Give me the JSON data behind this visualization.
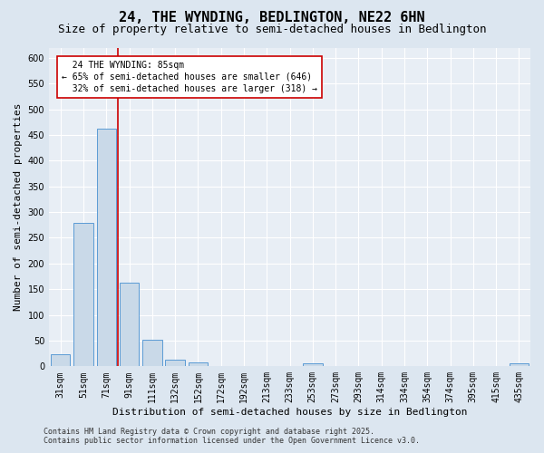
{
  "title_line1": "24, THE WYNDING, BEDLINGTON, NE22 6HN",
  "title_line2": "Size of property relative to semi-detached houses in Bedlington",
  "xlabel": "Distribution of semi-detached houses by size in Bedlington",
  "ylabel": "Number of semi-detached properties",
  "bar_labels": [
    "31sqm",
    "51sqm",
    "71sqm",
    "91sqm",
    "111sqm",
    "132sqm",
    "152sqm",
    "172sqm",
    "192sqm",
    "213sqm",
    "233sqm",
    "253sqm",
    "273sqm",
    "293sqm",
    "314sqm",
    "334sqm",
    "354sqm",
    "374sqm",
    "395sqm",
    "415sqm",
    "435sqm"
  ],
  "bar_values": [
    23,
    279,
    462,
    163,
    52,
    13,
    8,
    0,
    0,
    0,
    0,
    5,
    0,
    0,
    0,
    0,
    0,
    0,
    0,
    0,
    5
  ],
  "bar_color": "#c9d9e8",
  "bar_edge_color": "#5b9bd5",
  "ylim": [
    0,
    620
  ],
  "yticks": [
    0,
    50,
    100,
    150,
    200,
    250,
    300,
    350,
    400,
    450,
    500,
    550,
    600
  ],
  "red_line_x": 2.5,
  "annotation_text_line1": "  24 THE WYNDING: 85sqm",
  "annotation_text_line2": "← 65% of semi-detached houses are smaller (646)",
  "annotation_text_line3": "  32% of semi-detached houses are larger (318) →",
  "annotation_box_color": "#ffffff",
  "annotation_box_edge_color": "#cc0000",
  "red_line_color": "#cc0000",
  "background_color": "#dce6f0",
  "plot_background_color": "#e8eef5",
  "grid_color": "#ffffff",
  "footer_line1": "Contains HM Land Registry data © Crown copyright and database right 2025.",
  "footer_line2": "Contains public sector information licensed under the Open Government Licence v3.0.",
  "title_fontsize": 11,
  "subtitle_fontsize": 9,
  "axis_label_fontsize": 8,
  "tick_fontsize": 7,
  "annotation_fontsize": 7,
  "footer_fontsize": 6
}
